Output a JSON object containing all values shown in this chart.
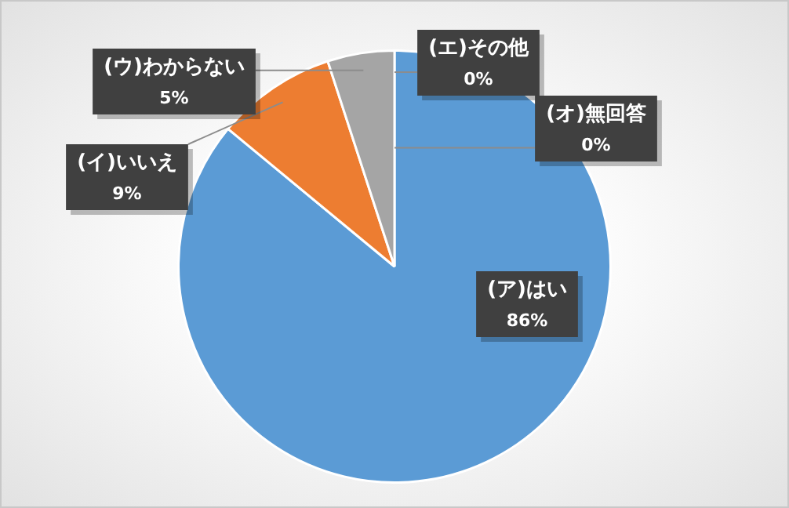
{
  "chart_data": {
    "type": "pie",
    "categories": [
      "(ア)はい",
      "(イ)いいえ",
      "(ウ)わからない",
      "(エ)その他",
      "(オ)無回答"
    ],
    "values": [
      86,
      9,
      5,
      0,
      0
    ],
    "colors": [
      "#5b9bd5",
      "#ed7d31",
      "#a5a5a5",
      "#ffc000",
      "#4472c4"
    ],
    "value_labels": [
      "86%",
      "9%",
      "5%",
      "0%",
      "0%"
    ],
    "legend": false
  }
}
